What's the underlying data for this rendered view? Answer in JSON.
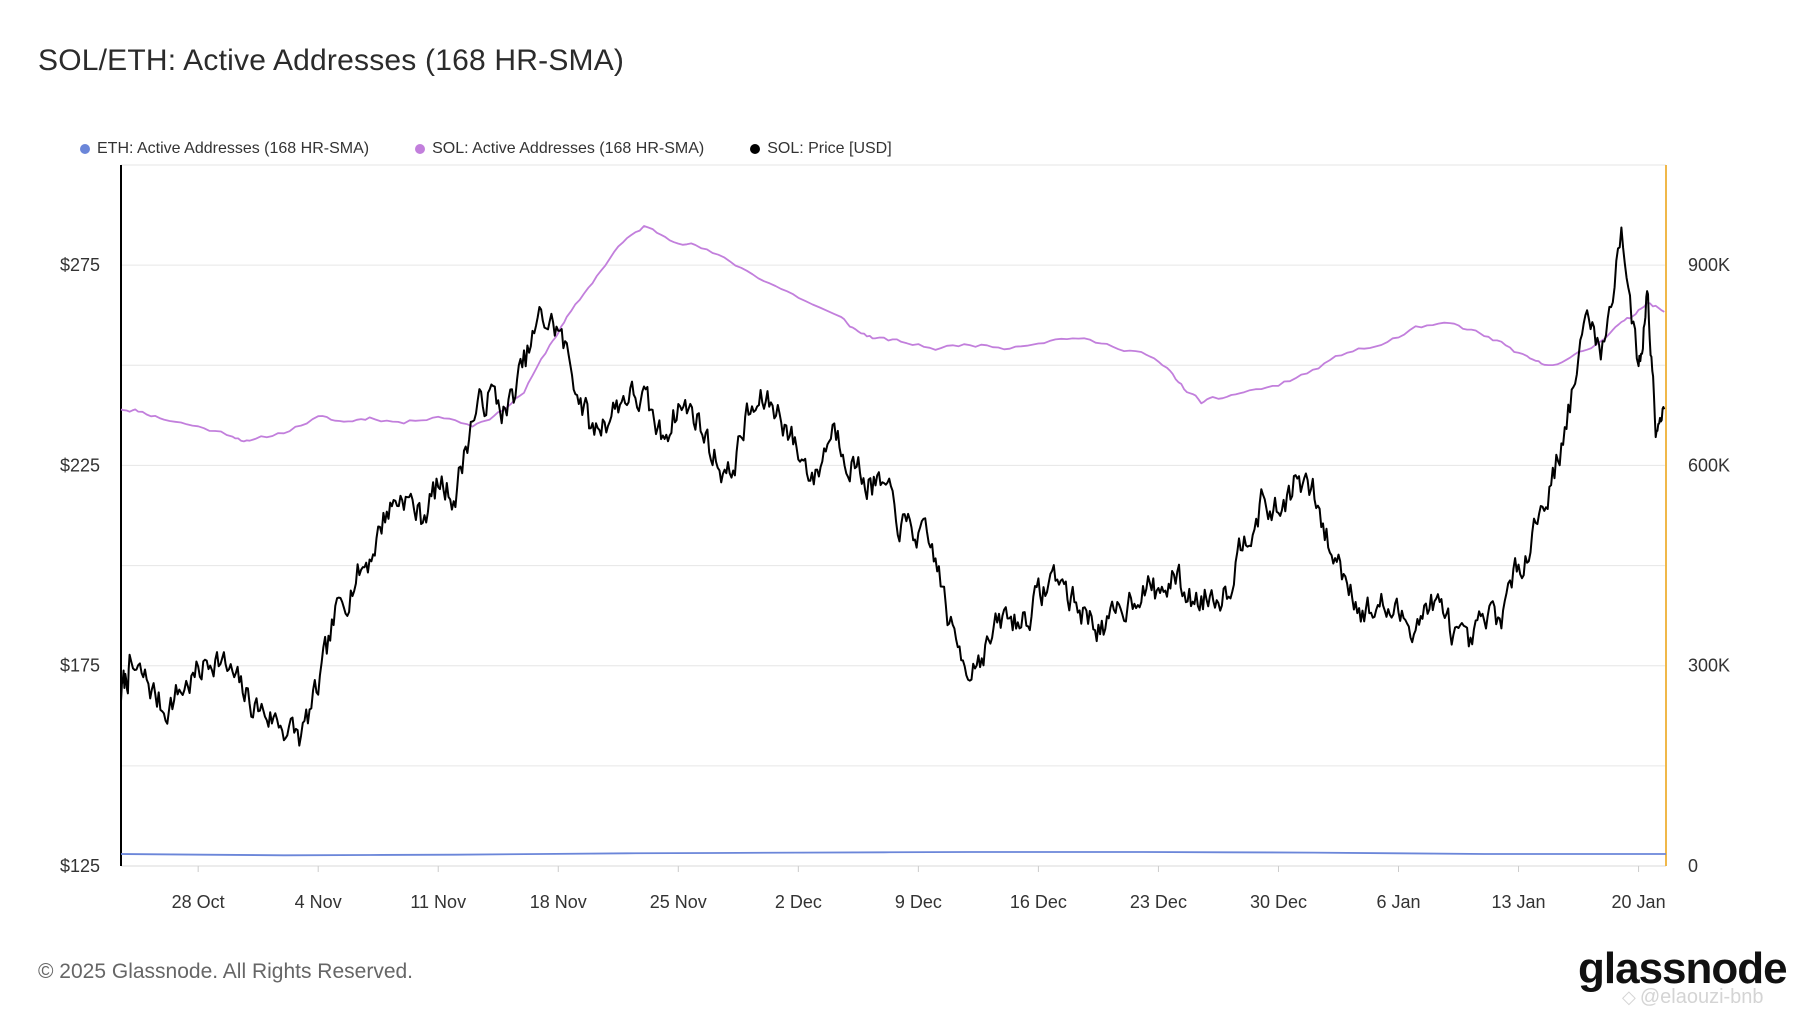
{
  "chart_data": {
    "type": "line",
    "title": "SOL/ETH: Active Addresses (168 HR-SMA)",
    "legend_position": "top-left",
    "grid": true,
    "left_axis": {
      "label": "",
      "min": 125,
      "max": 300,
      "ticks": [
        "$125",
        "$175",
        "$225",
        "$275"
      ],
      "tick_values": [
        125,
        175,
        225,
        275
      ]
    },
    "right_axis": {
      "label": "",
      "min": 0,
      "max": 1050000,
      "ticks": [
        "0",
        "300K",
        "600K",
        "900K"
      ],
      "tick_values": [
        0,
        300000,
        600000,
        900000
      ]
    },
    "x_ticks": [
      "28 Oct",
      "4 Nov",
      "11 Nov",
      "18 Nov",
      "25 Nov",
      "2 Dec",
      "9 Dec",
      "16 Dec",
      "23 Dec",
      "30 Dec",
      "6 Jan",
      "13 Jan",
      "20 Jan"
    ],
    "x_tick_days": [
      5,
      12,
      19,
      26,
      33,
      40,
      47,
      54,
      61,
      68,
      75,
      82,
      89
    ],
    "x_range_days": [
      0.5,
      90.6
    ],
    "series": [
      {
        "name": "ETH: Active Addresses (168 HR-SMA)",
        "axis": "right",
        "color": "#6b86d9",
        "x": [
          0.5,
          10,
          20,
          30,
          40,
          50,
          60,
          70,
          80,
          90.6
        ],
        "values": [
          18000,
          16000,
          17000,
          19000,
          20000,
          21000,
          21000,
          20000,
          18000,
          18000
        ]
      },
      {
        "name": "SOL: Active Addresses (168 HR-SMA)",
        "axis": "right",
        "color": "#c27fdc",
        "x": [
          0.5,
          1.5,
          3,
          5,
          7,
          8,
          10,
          12,
          13.5,
          15,
          17,
          19,
          21,
          22.5,
          24,
          25.5,
          26.5,
          28,
          29.5,
          31,
          32.5,
          34,
          36,
          38,
          40,
          42.5,
          43.5,
          44.5,
          46,
          48,
          50,
          52,
          54,
          56,
          58,
          60,
          61.5,
          62.5,
          63.5,
          64.5,
          66,
          68,
          70,
          72,
          74,
          76,
          78,
          79.5,
          81,
          82.5,
          83.5,
          85,
          86.5,
          87.5,
          88.5,
          89.5,
          90.5
        ],
        "values": [
          685000,
          682000,
          670000,
          658000,
          645000,
          635000,
          650000,
          672000,
          665000,
          672000,
          664000,
          675000,
          660000,
          678000,
          710000,
          780000,
          820000,
          875000,
          928000,
          958000,
          940000,
          930000,
          905000,
          878000,
          852000,
          820000,
          800000,
          790000,
          785000,
          775000,
          782000,
          777000,
          785000,
          792000,
          780000,
          770000,
          745000,
          715000,
          695000,
          700000,
          710000,
          720000,
          742000,
          770000,
          780000,
          805000,
          812000,
          800000,
          783000,
          760000,
          750000,
          760000,
          780000,
          805000,
          820000,
          846000,
          830000
        ]
      },
      {
        "name": "SOL: Price [USD]",
        "axis": "left",
        "color": "#000000",
        "x": [
          0.5,
          1,
          2,
          3,
          4,
          5,
          6,
          7,
          8,
          9,
          10,
          11,
          12,
          13,
          14,
          15,
          16,
          17,
          18,
          19,
          20,
          21,
          22,
          23,
          24,
          25,
          26,
          27,
          28,
          29,
          30,
          31,
          32,
          33,
          34,
          35,
          36,
          37,
          38,
          39,
          40,
          41,
          42,
          43,
          44,
          45,
          46,
          47,
          48,
          49,
          50,
          51,
          52,
          53,
          54,
          55,
          56,
          57,
          58,
          59,
          60,
          61,
          62,
          63,
          64,
          65,
          66,
          67,
          68,
          69,
          70,
          71,
          72,
          73,
          74,
          75,
          76,
          77,
          78,
          79,
          80,
          81,
          82,
          83,
          84,
          85,
          86,
          87,
          88,
          89,
          89.5,
          90,
          90.5
        ],
        "values": [
          168,
          174,
          171,
          164,
          169,
          173,
          178,
          172,
          166,
          163,
          160,
          157,
          169,
          187,
          196,
          202,
          214,
          218,
          212,
          220,
          218,
          237,
          243,
          238,
          250,
          262,
          259,
          246,
          233,
          238,
          243,
          241,
          232,
          240,
          238,
          228,
          222,
          237,
          241,
          238,
          228,
          222,
          235,
          227,
          221,
          219,
          210,
          208,
          202,
          182,
          175,
          180,
          187,
          186,
          192,
          198,
          191,
          187,
          184,
          190,
          195,
          193,
          197,
          191,
          193,
          194,
          208,
          215,
          213,
          221,
          218,
          204,
          197,
          188,
          190,
          187,
          186,
          191,
          185,
          178,
          186,
          188,
          199,
          211,
          222,
          240,
          262,
          254,
          285,
          248,
          268,
          238,
          239
        ]
      }
    ]
  },
  "legend": [
    {
      "label": "ETH: Active Addresses (168 HR-SMA)",
      "color": "#6b86d9"
    },
    {
      "label": "SOL: Active Addresses (168 HR-SMA)",
      "color": "#c27fdc"
    },
    {
      "label": "SOL: Price [USD]",
      "color": "#000000"
    }
  ],
  "footer": {
    "copyright": "© 2025 Glassnode. All Rights Reserved.",
    "brand": "glassnode",
    "watermark": "@elaouzi-bnb"
  },
  "colors": {
    "grid": "#e6e6e6",
    "left_axis_line": "#000000",
    "right_axis_line": "#f0b84a"
  }
}
